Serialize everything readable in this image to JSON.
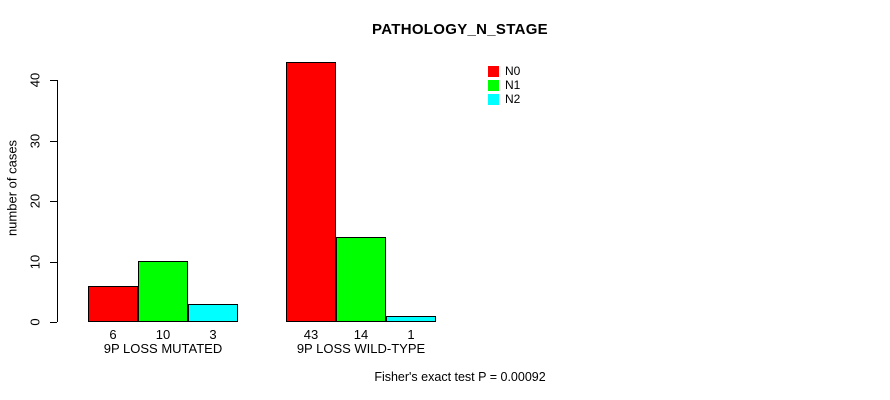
{
  "chart_data": {
    "type": "bar",
    "title": "PATHOLOGY_N_STAGE",
    "ylabel": "number of cases",
    "xlabel": "",
    "ylim": [
      0,
      40
    ],
    "yticks": [
      0,
      10,
      20,
      30,
      40
    ],
    "categories": [
      "9P LOSS MUTATED",
      "9P LOSS WILD-TYPE"
    ],
    "series": [
      {
        "name": "N0",
        "color": "#ff0000",
        "values": [
          6,
          43
        ]
      },
      {
        "name": "N1",
        "color": "#00ff00",
        "values": [
          10,
          14
        ]
      },
      {
        "name": "N2",
        "color": "#00ffff",
        "values": [
          3,
          1
        ]
      }
    ],
    "bar_value_labels": true,
    "legend_position": "top-right",
    "grid": false,
    "annotation": "Fisher's exact test P = 0.00092"
  },
  "colors": {
    "bar_border": "#000000",
    "axis": "#000000",
    "text": "#000000",
    "background": "#ffffff"
  }
}
